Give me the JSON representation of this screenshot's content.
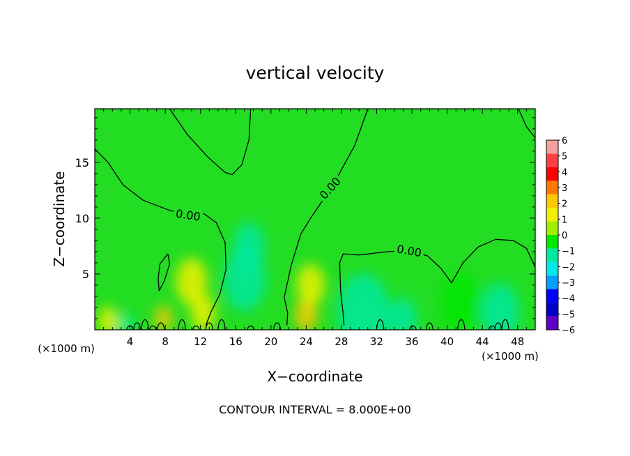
{
  "chart_data": {
    "type": "heatmap",
    "title": "vertical velocity",
    "xlabel": "X−coordinate",
    "ylabel": "Z−coordinate",
    "x_unit_left": "(×1000 m)",
    "x_unit_right": "(×1000 m)",
    "xlim": [
      0,
      50
    ],
    "ylim": [
      0,
      19.8
    ],
    "x_ticks": [
      4,
      8,
      12,
      16,
      20,
      24,
      28,
      32,
      36,
      40,
      44,
      48
    ],
    "y_ticks": [
      5,
      10,
      15
    ],
    "footer": "CONTOUR INTERVAL = 8.000E+00",
    "contour_labels": [
      {
        "text": "0.00",
        "x": 10.6,
        "z": 10.3,
        "angle": 8
      },
      {
        "text": "0.00",
        "x": 26.7,
        "z": 12.7,
        "angle": -48
      },
      {
        "text": "0.00",
        "x": 35.7,
        "z": 7.1,
        "angle": 10
      }
    ],
    "colorbar": {
      "levels": [
        "6",
        "5",
        "4",
        "3",
        "2",
        "1",
        "0",
        "−1",
        "−2",
        "−3",
        "−4",
        "−5",
        "−6"
      ],
      "colors": [
        "#f4a0a0",
        "#ff4040",
        "#ff0000",
        "#ff7800",
        "#ffc800",
        "#f0f000",
        "#a0f000",
        "#00e800",
        "#00e8a0",
        "#00e8e8",
        "#00a0ff",
        "#0000ff",
        "#0000c8",
        "#6000c8"
      ]
    },
    "background_color": "#22dd22",
    "cells": [
      {
        "x": 1.5,
        "z": 0.8,
        "r": 1.1,
        "v": 1.5
      },
      {
        "x": 3.5,
        "z": 0.4,
        "r": 0.9,
        "v": -1.2
      },
      {
        "x": 7.8,
        "z": 1.0,
        "r": 1.0,
        "v": 2.2
      },
      {
        "x": 11.0,
        "z": 4.3,
        "r": 1.8,
        "v": 1.8
      },
      {
        "x": 12.3,
        "z": 1.5,
        "r": 1.4,
        "v": 1.2
      },
      {
        "x": 17.0,
        "z": 4.5,
        "r": 2.4,
        "v": -1.4
      },
      {
        "x": 17.5,
        "z": 7.5,
        "r": 1.8,
        "v": -1.0
      },
      {
        "x": 24.0,
        "z": 1.3,
        "r": 1.3,
        "v": 2.6
      },
      {
        "x": 24.5,
        "z": 4.0,
        "r": 1.6,
        "v": 1.1
      },
      {
        "x": 30.5,
        "z": 1.5,
        "r": 3.0,
        "v": -1.0
      },
      {
        "x": 35.0,
        "z": 1.0,
        "r": 1.6,
        "v": -1.3
      },
      {
        "x": 46.0,
        "z": 1.6,
        "r": 2.2,
        "v": -1.1
      },
      {
        "x": 41.5,
        "z": 2.5,
        "r": 2.2,
        "v": -0.8
      }
    ],
    "contours": [
      [
        [
          0,
          16.2
        ],
        [
          1.5,
          15.0
        ],
        [
          3.2,
          13.0
        ],
        [
          5.5,
          11.6
        ],
        [
          8.5,
          10.7
        ],
        [
          10.6,
          10.3
        ],
        [
          12.4,
          10.4
        ],
        [
          13.8,
          9.6
        ],
        [
          14.8,
          7.8
        ],
        [
          14.9,
          5.4
        ],
        [
          14.2,
          3.2
        ],
        [
          13.2,
          1.6
        ],
        [
          12.6,
          0.4
        ]
      ],
      [
        [
          8.3,
          6.8
        ],
        [
          7.4,
          5.9
        ],
        [
          7.2,
          4.6
        ],
        [
          7.3,
          3.5
        ],
        [
          7.9,
          4.4
        ],
        [
          8.5,
          5.9
        ],
        [
          8.3,
          6.8
        ]
      ],
      [
        [
          8.5,
          19.8
        ],
        [
          10.5,
          17.5
        ],
        [
          12.8,
          15.5
        ],
        [
          14.8,
          14.1
        ],
        [
          15.6,
          13.9
        ],
        [
          16.7,
          14.8
        ],
        [
          17.5,
          17.0
        ],
        [
          17.7,
          19.8
        ]
      ],
      [
        [
          31.0,
          19.8
        ],
        [
          29.5,
          16.5
        ],
        [
          27.0,
          12.9
        ],
        [
          24.5,
          10.0
        ],
        [
          23.4,
          8.6
        ],
        [
          22.3,
          5.8
        ],
        [
          21.5,
          2.9
        ],
        [
          21.9,
          1.5
        ],
        [
          21.8,
          0.4
        ]
      ],
      [
        [
          48.1,
          19.8
        ],
        [
          49.0,
          18.2
        ],
        [
          50.0,
          17.2
        ]
      ],
      [
        [
          50.0,
          5.6
        ],
        [
          49.0,
          7.3
        ],
        [
          47.5,
          8.0
        ],
        [
          45.5,
          8.1
        ],
        [
          43.5,
          7.4
        ],
        [
          41.8,
          6.0
        ],
        [
          40.5,
          4.2
        ],
        [
          39.3,
          5.5
        ],
        [
          37.8,
          6.6
        ],
        [
          35.8,
          7.1
        ],
        [
          33.3,
          7.0
        ],
        [
          30.0,
          6.7
        ],
        [
          28.2,
          6.8
        ],
        [
          27.8,
          6.0
        ],
        [
          27.9,
          3.5
        ],
        [
          28.2,
          1.4
        ],
        [
          28.3,
          0.4
        ]
      ]
    ],
    "surface_bumps": [
      4.0,
      4.8,
      5.7,
      6.6,
      7.5,
      9.9,
      11.5,
      13.0,
      14.4,
      17.7,
      20.7,
      32.4,
      36.1,
      38.0,
      41.6,
      45.1,
      45.8,
      46.6
    ]
  }
}
